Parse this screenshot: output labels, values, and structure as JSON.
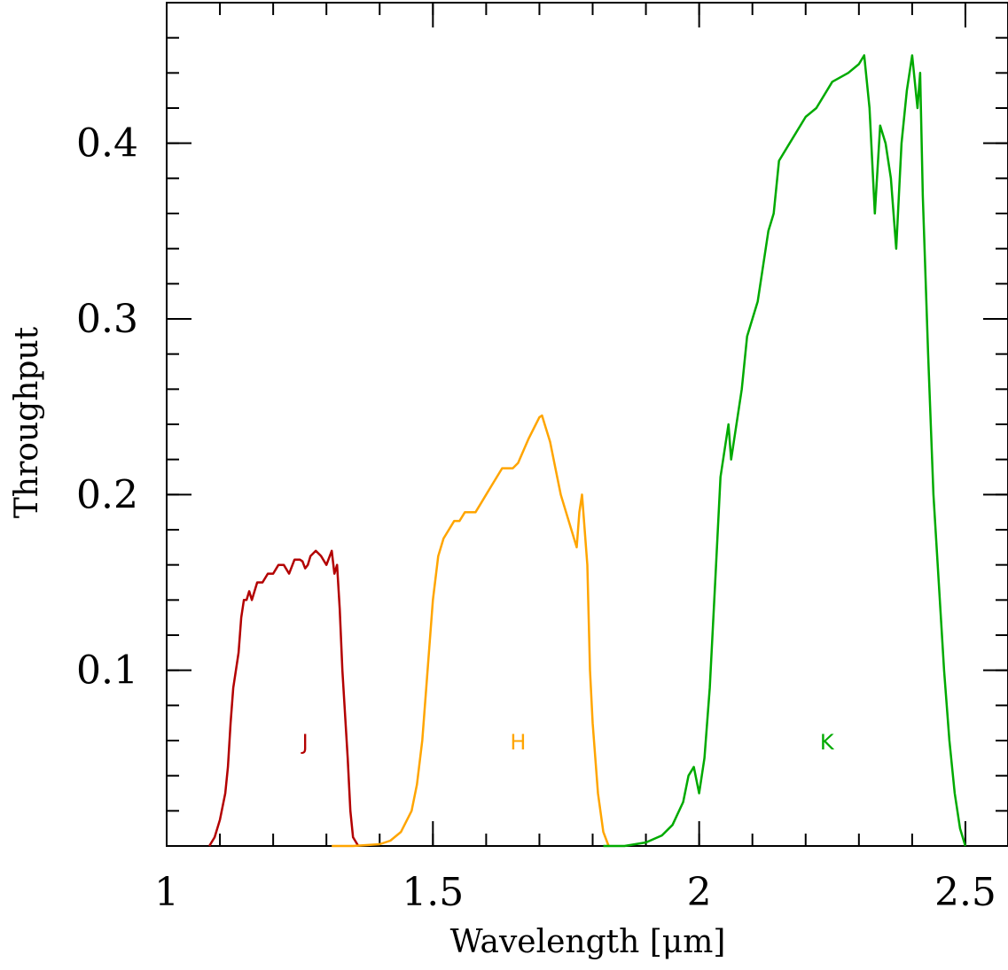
{
  "chart_data": {
    "type": "line",
    "xlabel": "Wavelength [μm]",
    "ylabel": "Throughput",
    "xlim": [
      1.0,
      2.58
    ],
    "ylim": [
      0.0,
      0.48
    ],
    "x_ticks": [
      {
        "value": 1.0,
        "label": "1"
      },
      {
        "value": 1.5,
        "label": "1.5"
      },
      {
        "value": 2.0,
        "label": "2"
      },
      {
        "value": 2.5,
        "label": "2.5"
      }
    ],
    "y_ticks": [
      {
        "value": 0.1,
        "label": "0.1"
      },
      {
        "value": 0.2,
        "label": "0.2"
      },
      {
        "value": 0.3,
        "label": "0.3"
      },
      {
        "value": 0.4,
        "label": "0.4"
      }
    ],
    "x_minor_step": 0.1,
    "y_minor_step": 0.02,
    "grid": false,
    "series": [
      {
        "name": "J",
        "color": "#b30000",
        "label_pos": [
          1.26,
          0.055
        ],
        "x": [
          1.08,
          1.09,
          1.1,
          1.11,
          1.115,
          1.12,
          1.125,
          1.13,
          1.135,
          1.14,
          1.145,
          1.15,
          1.155,
          1.16,
          1.17,
          1.18,
          1.19,
          1.2,
          1.21,
          1.22,
          1.23,
          1.24,
          1.25,
          1.255,
          1.26,
          1.265,
          1.27,
          1.28,
          1.29,
          1.3,
          1.31,
          1.315,
          1.32,
          1.325,
          1.33,
          1.34,
          1.345,
          1.35,
          1.36
        ],
        "y": [
          0.0,
          0.005,
          0.015,
          0.03,
          0.045,
          0.07,
          0.09,
          0.1,
          0.11,
          0.13,
          0.14,
          0.14,
          0.145,
          0.14,
          0.15,
          0.15,
          0.155,
          0.155,
          0.16,
          0.16,
          0.155,
          0.163,
          0.163,
          0.162,
          0.158,
          0.16,
          0.165,
          0.168,
          0.165,
          0.16,
          0.168,
          0.155,
          0.16,
          0.135,
          0.1,
          0.05,
          0.02,
          0.005,
          0.0
        ]
      },
      {
        "name": "H",
        "color": "#ffa500",
        "label_pos": [
          1.66,
          0.055
        ],
        "x": [
          1.31,
          1.35,
          1.4,
          1.42,
          1.44,
          1.46,
          1.47,
          1.48,
          1.49,
          1.5,
          1.51,
          1.52,
          1.53,
          1.54,
          1.55,
          1.56,
          1.57,
          1.58,
          1.59,
          1.6,
          1.61,
          1.62,
          1.63,
          1.64,
          1.65,
          1.66,
          1.67,
          1.68,
          1.69,
          1.7,
          1.705,
          1.71,
          1.72,
          1.73,
          1.74,
          1.75,
          1.76,
          1.77,
          1.775,
          1.78,
          1.785,
          1.79,
          1.795,
          1.8,
          1.81,
          1.82,
          1.83
        ],
        "y": [
          0.0,
          0.0,
          0.001,
          0.003,
          0.008,
          0.02,
          0.035,
          0.06,
          0.1,
          0.14,
          0.165,
          0.175,
          0.18,
          0.185,
          0.185,
          0.19,
          0.19,
          0.19,
          0.195,
          0.2,
          0.205,
          0.21,
          0.215,
          0.215,
          0.215,
          0.218,
          0.225,
          0.232,
          0.238,
          0.244,
          0.245,
          0.24,
          0.23,
          0.215,
          0.2,
          0.19,
          0.18,
          0.17,
          0.19,
          0.2,
          0.18,
          0.16,
          0.1,
          0.07,
          0.03,
          0.008,
          0.0
        ]
      },
      {
        "name": "K",
        "color": "#00aa00",
        "label_pos": [
          2.24,
          0.055
        ],
        "x": [
          1.82,
          1.86,
          1.9,
          1.93,
          1.95,
          1.97,
          1.98,
          1.99,
          2.0,
          2.01,
          2.02,
          2.03,
          2.04,
          2.05,
          2.055,
          2.06,
          2.07,
          2.08,
          2.09,
          2.1,
          2.11,
          2.12,
          2.13,
          2.14,
          2.15,
          2.17,
          2.2,
          2.22,
          2.25,
          2.28,
          2.3,
          2.31,
          2.32,
          2.33,
          2.34,
          2.35,
          2.36,
          2.37,
          2.38,
          2.39,
          2.4,
          2.41,
          2.415,
          2.42,
          2.43,
          2.44,
          2.45,
          2.46,
          2.47,
          2.48,
          2.49,
          2.5
        ],
        "y": [
          0.0,
          0.0,
          0.002,
          0.006,
          0.012,
          0.025,
          0.04,
          0.045,
          0.03,
          0.05,
          0.09,
          0.15,
          0.21,
          0.23,
          0.24,
          0.22,
          0.24,
          0.26,
          0.29,
          0.3,
          0.31,
          0.33,
          0.35,
          0.36,
          0.39,
          0.4,
          0.415,
          0.42,
          0.435,
          0.44,
          0.445,
          0.45,
          0.42,
          0.36,
          0.41,
          0.4,
          0.38,
          0.34,
          0.4,
          0.43,
          0.45,
          0.42,
          0.44,
          0.37,
          0.28,
          0.2,
          0.15,
          0.1,
          0.06,
          0.03,
          0.01,
          0.0
        ]
      }
    ]
  }
}
